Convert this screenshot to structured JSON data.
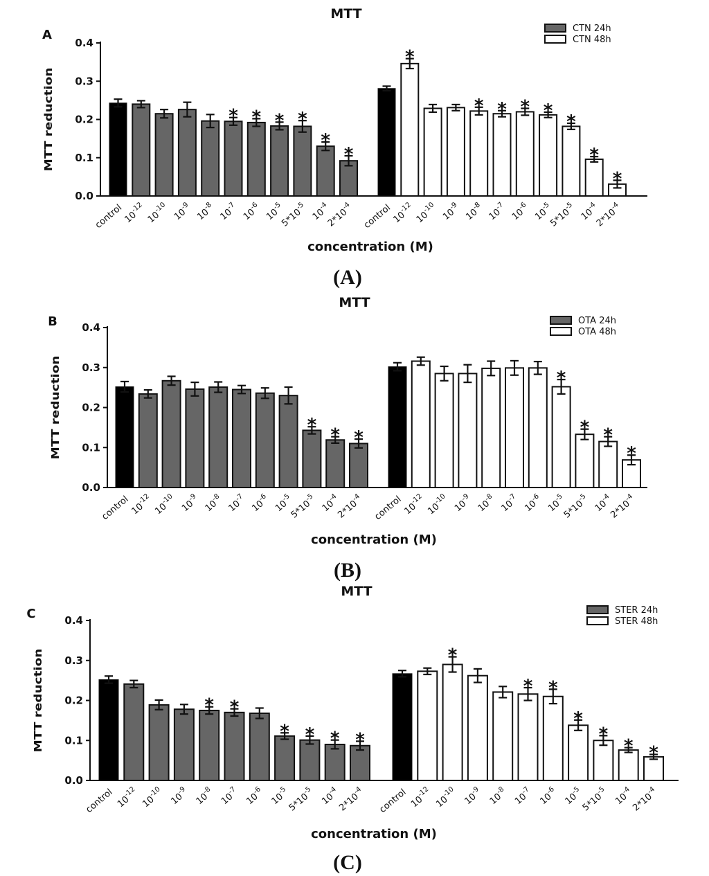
{
  "chart_data": [
    {
      "type": "bar",
      "panel_letter": "A",
      "caption": "(A)",
      "title": "MTT",
      "ylabel": "MTT reduction",
      "xlabel": "concentration (M)",
      "ylim": [
        0,
        0.4
      ],
      "yticks": [
        "0.0",
        "0.1",
        "0.2",
        "0.3",
        "0.4"
      ],
      "categories": [
        "control",
        "10-12",
        "10-10",
        "10-9",
        "10-8",
        "10-7",
        "10-6",
        "10-5",
        "5*10-5",
        "10-4",
        "2*10-4"
      ],
      "series": [
        {
          "name": "CTN 24h",
          "control_color": "#000000",
          "fill": "#666666",
          "values": [
            0.243,
            0.24,
            0.215,
            0.226,
            0.196,
            0.195,
            0.192,
            0.183,
            0.182,
            0.13,
            0.092
          ],
          "errors": [
            0.01,
            0.009,
            0.011,
            0.019,
            0.017,
            0.01,
            0.01,
            0.01,
            0.015,
            0.011,
            0.013
          ],
          "significant": [
            false,
            false,
            false,
            false,
            false,
            true,
            true,
            true,
            true,
            true,
            true
          ]
        },
        {
          "name": "CTN 48h",
          "control_color": "#000000",
          "fill": "#ffffff",
          "values": [
            0.281,
            0.346,
            0.229,
            0.231,
            0.222,
            0.215,
            0.22,
            0.212,
            0.182,
            0.096,
            0.031
          ],
          "errors": [
            0.006,
            0.013,
            0.01,
            0.008,
            0.01,
            0.008,
            0.009,
            0.007,
            0.008,
            0.007,
            0.01
          ],
          "significant": [
            false,
            true,
            false,
            false,
            true,
            true,
            true,
            true,
            true,
            true,
            true
          ]
        }
      ]
    },
    {
      "type": "bar",
      "panel_letter": "B",
      "caption": "(B)",
      "title": "MTT",
      "ylabel": "MTT reduction",
      "xlabel": "concentration (M)",
      "ylim": [
        0,
        0.4
      ],
      "yticks": [
        "0.0",
        "0.1",
        "0.2",
        "0.3",
        "0.4"
      ],
      "categories": [
        "control",
        "10-12",
        "10-10",
        "10-9",
        "10-8",
        "10-7",
        "10-6",
        "10-5",
        "5*10-5",
        "10-4",
        "2*10-4"
      ],
      "series": [
        {
          "name": "OTA 24h",
          "control_color": "#000000",
          "fill": "#666666",
          "values": [
            0.252,
            0.234,
            0.267,
            0.246,
            0.251,
            0.245,
            0.236,
            0.23,
            0.143,
            0.119,
            0.11
          ],
          "errors": [
            0.013,
            0.01,
            0.011,
            0.017,
            0.013,
            0.01,
            0.013,
            0.021,
            0.009,
            0.008,
            0.011
          ],
          "significant": [
            false,
            false,
            false,
            false,
            false,
            false,
            false,
            false,
            true,
            true,
            true
          ]
        },
        {
          "name": "OTA 48h",
          "control_color": "#000000",
          "fill": "#ffffff",
          "values": [
            0.302,
            0.316,
            0.285,
            0.285,
            0.298,
            0.299,
            0.299,
            0.252,
            0.133,
            0.115,
            0.069
          ],
          "errors": [
            0.01,
            0.01,
            0.018,
            0.022,
            0.018,
            0.018,
            0.016,
            0.018,
            0.013,
            0.012,
            0.012
          ],
          "significant": [
            false,
            false,
            false,
            false,
            false,
            false,
            false,
            true,
            true,
            true,
            true
          ]
        }
      ]
    },
    {
      "type": "bar",
      "panel_letter": "C",
      "caption": "(C)",
      "title": "MTT",
      "ylabel": "MTT reduction",
      "xlabel": "concentration (M)",
      "ylim": [
        0,
        0.4
      ],
      "yticks": [
        "0.0",
        "0.1",
        "0.2",
        "0.3",
        "0.4"
      ],
      "categories": [
        "control",
        "10-12",
        "10-10",
        "10-9",
        "10-8",
        "10-7",
        "10-6",
        "10-5",
        "5*10-5",
        "10-4",
        "2*10-4"
      ],
      "series": [
        {
          "name": "STER 24h",
          "control_color": "#000000",
          "fill": "#666666",
          "values": [
            0.252,
            0.241,
            0.189,
            0.178,
            0.175,
            0.17,
            0.168,
            0.111,
            0.101,
            0.09,
            0.087
          ],
          "errors": [
            0.009,
            0.009,
            0.012,
            0.012,
            0.009,
            0.009,
            0.013,
            0.008,
            0.01,
            0.011,
            0.011
          ],
          "significant": [
            false,
            false,
            false,
            false,
            true,
            true,
            false,
            true,
            true,
            true,
            true
          ]
        },
        {
          "name": "STER 48h",
          "control_color": "#000000",
          "fill": "#ffffff",
          "values": [
            0.267,
            0.273,
            0.29,
            0.262,
            0.221,
            0.216,
            0.21,
            0.138,
            0.1,
            0.076,
            0.059
          ],
          "errors": [
            0.008,
            0.008,
            0.019,
            0.017,
            0.014,
            0.016,
            0.018,
            0.013,
            0.012,
            0.006,
            0.006
          ],
          "significant": [
            false,
            false,
            true,
            false,
            false,
            true,
            true,
            true,
            true,
            true,
            true
          ]
        }
      ]
    }
  ]
}
